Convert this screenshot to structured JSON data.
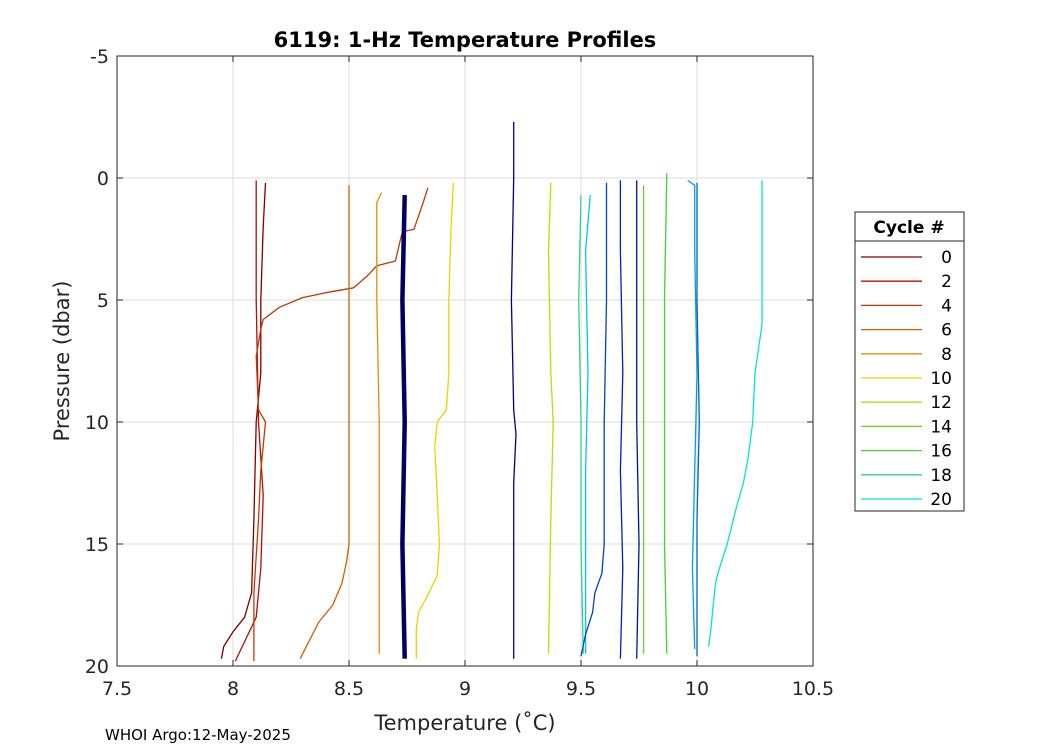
{
  "chart_data": {
    "type": "line",
    "title": "6119: 1-Hz Temperature Profiles",
    "xlabel": "Temperature (˚C)",
    "ylabel": "Pressure (dbar)",
    "xlim": [
      7.5,
      10.5
    ],
    "ylim": [
      -5,
      20
    ],
    "y_reversed": true,
    "grid": true,
    "x_ticks": [
      "7.5",
      "8",
      "8.5",
      "9",
      "9.5",
      "10",
      "10.5"
    ],
    "y_ticks": [
      "-5",
      "0",
      "5",
      "10",
      "15",
      "20"
    ],
    "legend": {
      "title": "Cycle #",
      "placement": "outside-right"
    },
    "series": [
      {
        "name": "0",
        "color": "#800000",
        "points": [
          [
            8.14,
            0.2
          ],
          [
            8.13,
            2
          ],
          [
            8.12,
            5
          ],
          [
            8.12,
            8
          ],
          [
            8.1,
            10
          ],
          [
            8.09,
            14
          ],
          [
            8.08,
            17
          ],
          [
            8.05,
            18
          ],
          [
            8.0,
            18.6
          ],
          [
            7.96,
            19.2
          ],
          [
            7.95,
            19.7
          ]
        ]
      },
      {
        "name": "2",
        "color": "#b01000",
        "points": [
          [
            8.1,
            0.1
          ],
          [
            8.1,
            5
          ],
          [
            8.11,
            10
          ],
          [
            8.13,
            13
          ],
          [
            8.12,
            16
          ],
          [
            8.1,
            18
          ],
          [
            8.05,
            19
          ],
          [
            8.01,
            19.8
          ]
        ]
      },
      {
        "name": "4",
        "color": "#c33800",
        "points": [
          [
            8.84,
            0.4
          ],
          [
            8.82,
            1.0
          ],
          [
            8.78,
            2.1
          ],
          [
            8.73,
            2.2
          ],
          [
            8.72,
            2.6
          ],
          [
            8.7,
            3.4
          ],
          [
            8.62,
            3.6
          ],
          [
            8.58,
            4.0
          ],
          [
            8.52,
            4.5
          ],
          [
            8.4,
            4.7
          ],
          [
            8.3,
            4.9
          ],
          [
            8.2,
            5.3
          ],
          [
            8.13,
            5.8
          ],
          [
            8.12,
            6.2
          ],
          [
            8.1,
            7.3
          ],
          [
            8.11,
            9.5
          ],
          [
            8.14,
            10
          ],
          [
            8.12,
            12
          ],
          [
            8.11,
            14
          ],
          [
            8.09,
            17
          ],
          [
            8.09,
            19
          ],
          [
            8.09,
            19.8
          ]
        ]
      },
      {
        "name": "6",
        "color": "#d06000",
        "points": [
          [
            8.5,
            0.3
          ],
          [
            8.5,
            5
          ],
          [
            8.5,
            10
          ],
          [
            8.5,
            15
          ],
          [
            8.49,
            15.7
          ],
          [
            8.47,
            16.6
          ],
          [
            8.43,
            17.5
          ],
          [
            8.37,
            18.2
          ],
          [
            8.3,
            19.5
          ],
          [
            8.29,
            19.7
          ]
        ]
      },
      {
        "name": "8",
        "color": "#e09000",
        "points": [
          [
            8.64,
            0.6
          ],
          [
            8.62,
            1.0
          ],
          [
            8.62,
            5
          ],
          [
            8.63,
            10
          ],
          [
            8.63,
            15
          ],
          [
            8.63,
            19.5
          ]
        ]
      },
      {
        "name": "10",
        "color": "#f0d000",
        "points": [
          [
            8.95,
            0.2
          ],
          [
            8.94,
            2
          ],
          [
            8.93,
            5
          ],
          [
            8.93,
            8
          ],
          [
            8.92,
            9.5
          ],
          [
            8.88,
            10
          ],
          [
            8.87,
            11
          ],
          [
            8.88,
            13
          ],
          [
            8.89,
            15
          ],
          [
            8.88,
            16.3
          ],
          [
            8.85,
            16.9
          ],
          [
            8.8,
            17.8
          ],
          [
            8.79,
            18.5
          ],
          [
            8.79,
            19.7
          ]
        ]
      },
      {
        "name": "12",
        "color": "#b8e000",
        "points": [
          [
            9.37,
            0.2
          ],
          [
            9.36,
            3
          ],
          [
            9.37,
            8
          ],
          [
            9.38,
            10
          ],
          [
            9.37,
            14
          ],
          [
            9.36,
            19.5
          ]
        ]
      },
      {
        "name": "14",
        "color": "#70d020",
        "points": [
          [
            9.77,
            0.3
          ],
          [
            9.77,
            5
          ],
          [
            9.77,
            10
          ],
          [
            9.77,
            15
          ],
          [
            9.77,
            19.5
          ]
        ]
      },
      {
        "name": "16",
        "color": "#40d040",
        "points": [
          [
            9.87,
            -0.2
          ],
          [
            9.86,
            5
          ],
          [
            9.86,
            10
          ],
          [
            9.86,
            15
          ],
          [
            9.87,
            19.5
          ]
        ]
      },
      {
        "name": "18",
        "color": "#30d090",
        "points": [
          [
            9.5,
            0.7
          ],
          [
            9.49,
            5
          ],
          [
            9.5,
            10
          ],
          [
            9.5,
            15
          ],
          [
            9.51,
            19.5
          ]
        ]
      },
      {
        "name": "20",
        "color": "#00e8d0",
        "points": [
          [
            10.28,
            0.1
          ],
          [
            10.28,
            3
          ],
          [
            10.28,
            6
          ],
          [
            10.25,
            8
          ],
          [
            10.24,
            10
          ],
          [
            10.22,
            11.5
          ],
          [
            10.2,
            12.5
          ],
          [
            10.17,
            13.5
          ],
          [
            10.13,
            15
          ],
          [
            10.09,
            16.2
          ],
          [
            10.08,
            16.6
          ],
          [
            10.07,
            17.5
          ],
          [
            10.06,
            18.5
          ],
          [
            10.05,
            19.2
          ]
        ]
      },
      {
        "name": "",
        "color": "#00c8e8",
        "points": [
          [
            9.54,
            0.7
          ],
          [
            9.52,
            3
          ],
          [
            9.53,
            8
          ],
          [
            9.52,
            12
          ],
          [
            9.52,
            16
          ],
          [
            9.52,
            19.5
          ]
        ]
      },
      {
        "name": "",
        "color": "#00a0e0",
        "points": [
          [
            9.96,
            0.1
          ],
          [
            9.99,
            0.3
          ],
          [
            9.99,
            3
          ],
          [
            10.0,
            8
          ],
          [
            9.99,
            12
          ],
          [
            9.98,
            16
          ],
          [
            9.99,
            19.3
          ]
        ]
      },
      {
        "name": "",
        "color": "#0060d0",
        "points": [
          [
            10.0,
            0.2
          ],
          [
            10.0,
            5
          ],
          [
            10.01,
            10
          ],
          [
            10.0,
            14
          ],
          [
            10.0,
            18
          ],
          [
            10.0,
            19.6
          ]
        ]
      },
      {
        "name": "",
        "color": "#0040c8",
        "points": [
          [
            9.61,
            0.2
          ],
          [
            9.61,
            5
          ],
          [
            9.6,
            10
          ],
          [
            9.6,
            15
          ],
          [
            9.59,
            16.2
          ],
          [
            9.56,
            17
          ],
          [
            9.55,
            17.8
          ],
          [
            9.52,
            18.7
          ],
          [
            9.5,
            19.6
          ]
        ]
      },
      {
        "name": "",
        "color": "#0020c0",
        "points": [
          [
            9.67,
            0.1
          ],
          [
            9.67,
            3
          ],
          [
            9.68,
            8
          ],
          [
            9.67,
            12
          ],
          [
            9.68,
            16
          ],
          [
            9.67,
            19.7
          ]
        ]
      },
      {
        "name": "",
        "color": "#0010a8",
        "points": [
          [
            9.74,
            0.1
          ],
          [
            9.74,
            5
          ],
          [
            9.74,
            10
          ],
          [
            9.75,
            15
          ],
          [
            9.74,
            19.7
          ]
        ]
      },
      {
        "name": "",
        "color": "#000090",
        "points": [
          [
            9.21,
            -2.3
          ],
          [
            9.21,
            0
          ],
          [
            9.2,
            5
          ],
          [
            9.21,
            9.5
          ],
          [
            9.22,
            10.5
          ],
          [
            9.21,
            12.5
          ],
          [
            9.21,
            16
          ],
          [
            9.21,
            19.7
          ]
        ]
      },
      {
        "name": "",
        "color": "#000060",
        "width": 4.5,
        "points": [
          [
            8.74,
            0.7
          ],
          [
            8.73,
            5
          ],
          [
            8.74,
            10
          ],
          [
            8.73,
            15
          ],
          [
            8.74,
            19.7
          ]
        ]
      }
    ]
  },
  "footer": {
    "text": "WHOI Argo:12-May-2025"
  }
}
